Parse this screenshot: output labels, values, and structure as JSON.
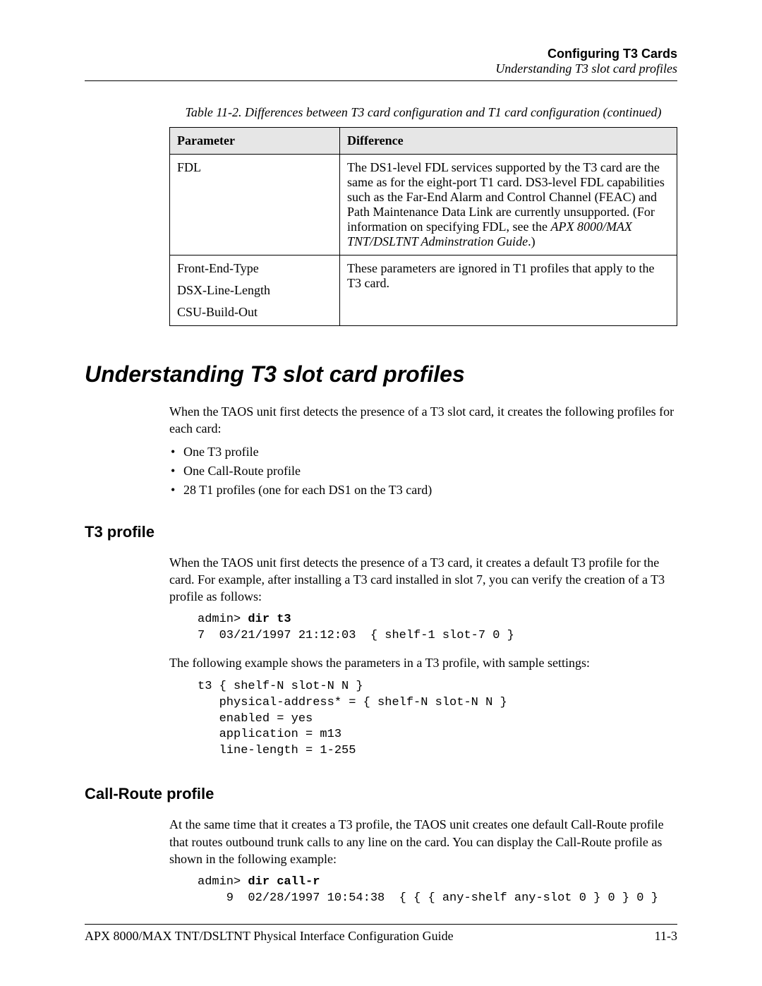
{
  "header": {
    "chapter": "Configuring T3 Cards",
    "subtitle": "Understanding T3 slot card profiles"
  },
  "table": {
    "caption": "Table 11-2. Differences between T3 card configuration and T1 card configuration (continued)",
    "columns": [
      "Parameter",
      "Difference"
    ],
    "rows": [
      {
        "param": "FDL",
        "diff_pre": "The DS1-level FDL services supported by the T3 card are the same as for the eight-port T1 card. DS3-level FDL capabilities such as the Far-End Alarm and Control Channel (FEAC) and Path Maintenance Data Link are currently unsupported. (For information on specifying FDL, see the ",
        "diff_italic": "APX 8000/MAX TNT/DSLTNT Adminstration Guide",
        "diff_post": ".)"
      },
      {
        "param_lines": [
          "Front-End-Type",
          "DSX-Line-Length",
          "CSU-Build-Out"
        ],
        "diff_pre": "These parameters are ignored in T1 profiles that apply to the T3 card.",
        "diff_italic": "",
        "diff_post": ""
      }
    ]
  },
  "section": {
    "title": "Understanding T3 slot card profiles",
    "intro": "When the TAOS unit first detects the presence of a T3 slot card, it creates the following profiles for each card:",
    "bullets": [
      "One T3 profile",
      "One Call-Route profile",
      "28 T1 profiles (one for each DS1 on the T3 card)"
    ]
  },
  "t3profile": {
    "title": "T3 profile",
    "p1": "When the TAOS unit first detects the presence of a T3 card, it creates a default T3 profile for the card. For example, after installing a T3 card installed in slot 7, you can verify the creation of a T3 profile as follows:",
    "code1_prompt": "admin> ",
    "code1_cmd": "dir t3",
    "code1_line2": "7  03/21/1997 21:12:03  { shelf-1 slot-7 0 }",
    "p2": "The following example shows the parameters in a T3 profile, with sample settings:",
    "code2": "t3 { shelf-N slot-N N }\n   physical-address* = { shelf-N slot-N N }\n   enabled = yes\n   application = m13\n   line-length = 1-255"
  },
  "callroute": {
    "title": "Call-Route profile",
    "p1": "At the same time that it creates a T3 profile, the TAOS unit creates one default Call-Route profile that routes outbound trunk calls to any line on the card. You can display the Call-Route profile as shown in the following example:",
    "code1_prompt": "admin> ",
    "code1_cmd": "dir call-r",
    "code1_line2": "    9  02/28/1997 10:54:38  { { { any-shelf any-slot 0 } 0 } 0 }"
  },
  "footer": {
    "left": "APX 8000/MAX TNT/DSLTNT Physical Interface Configuration Guide",
    "right": "11-3"
  }
}
